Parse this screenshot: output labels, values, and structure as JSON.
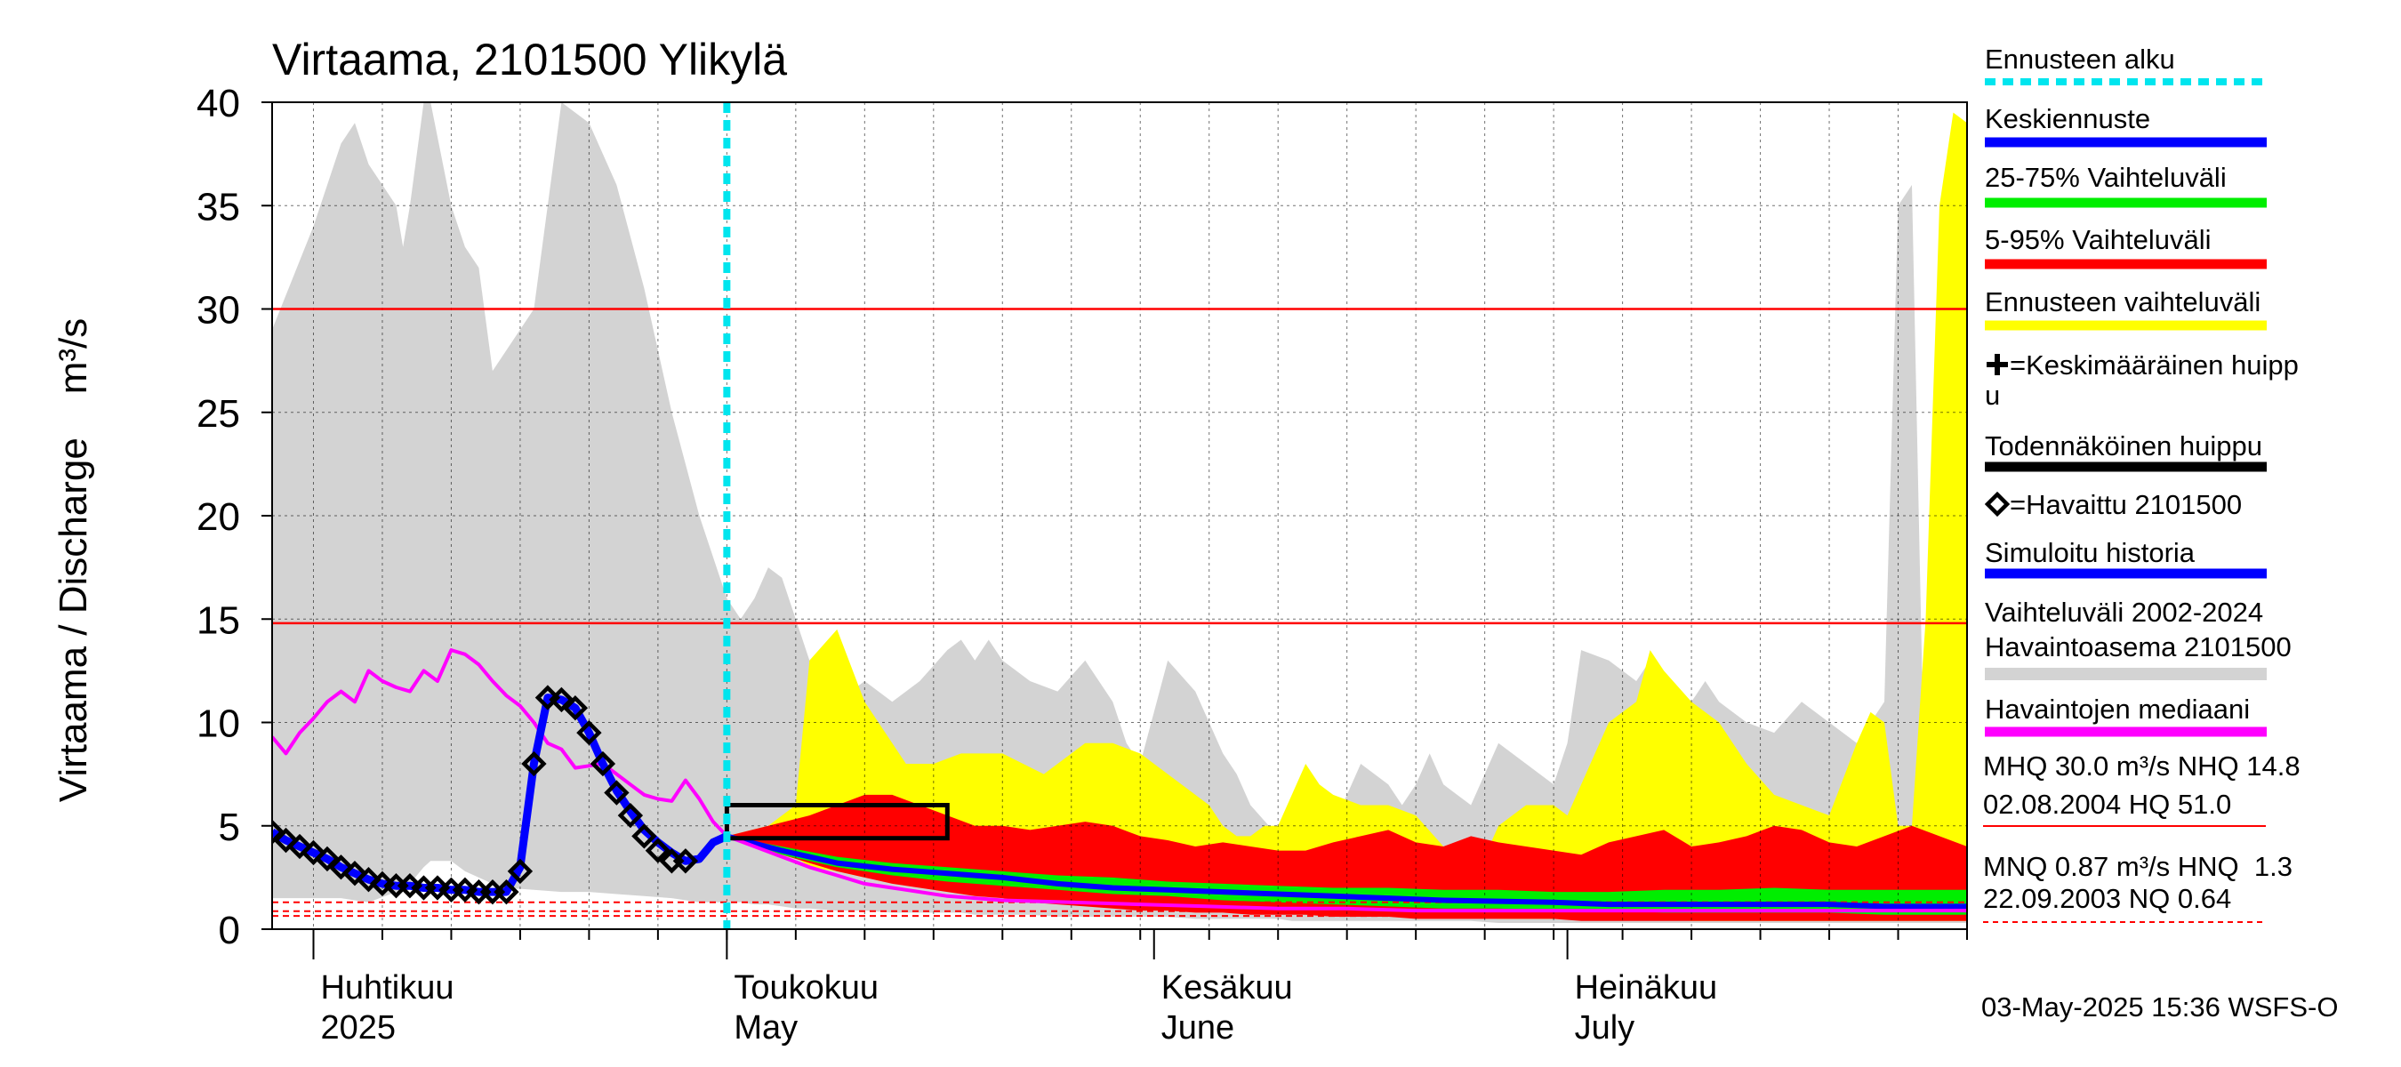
{
  "chart_data": {
    "type": "area",
    "title": "Virtaama, 2101500 Ylikylä",
    "ylabel": "Virtaama / Discharge    m³/s",
    "ylim": [
      0,
      40
    ],
    "yticks": [
      0,
      5,
      10,
      15,
      20,
      25,
      30,
      35,
      40
    ],
    "xlim_days": [
      -3,
      120
    ],
    "month_labels": [
      {
        "fi": "Huhtikuu",
        "en": "2025",
        "day": 0
      },
      {
        "fi": "Toukokuu",
        "en": "May",
        "day": 30
      },
      {
        "fi": "Kesäkuu",
        "en": "June",
        "day": 61
      },
      {
        "fi": "Heinäkuu",
        "en": "July",
        "day": 91
      }
    ],
    "forecast_start_day": 30,
    "reference_lines": [
      {
        "name": "MHQ",
        "value": 30.0,
        "style": "solid",
        "color": "#ff0000"
      },
      {
        "name": "NHQ",
        "value": 14.8,
        "style": "solid",
        "color": "#ff0000"
      },
      {
        "name": "MNQ",
        "value": 0.87,
        "style": "dashed",
        "color": "#ff0000"
      },
      {
        "name": "HNQ",
        "value": 1.3,
        "style": "dashed",
        "color": "#ff0000"
      },
      {
        "name": "NQ",
        "value": 0.64,
        "style": "dashed",
        "color": "#ff0000"
      }
    ],
    "series": [
      {
        "name": "Vaihteluväli 2002-2024 Havaintoasema 2101500",
        "kind": "band",
        "color": "#d3d3d3",
        "x": [
          -3,
          0,
          2,
          3,
          4,
          6,
          6.5,
          7,
          8,
          8.5,
          10,
          11,
          12,
          13,
          14,
          16,
          18,
          20,
          22,
          24,
          26,
          28,
          29,
          30,
          31,
          32,
          33,
          34,
          35,
          36,
          38,
          40,
          42,
          44,
          46,
          47,
          48,
          49,
          50,
          52,
          54,
          56,
          58,
          59,
          60,
          62,
          64,
          65,
          66,
          67,
          68,
          70,
          71,
          72,
          74,
          76,
          78,
          79,
          80,
          81,
          82,
          84,
          86,
          88,
          90,
          91,
          92,
          94,
          96,
          97,
          98,
          100,
          101,
          102,
          104,
          106,
          108,
          110,
          112,
          114,
          115,
          116,
          117,
          118,
          120
        ],
        "upper": [
          29,
          34,
          38,
          39,
          37,
          35,
          33,
          35,
          40,
          40,
          35,
          33,
          32,
          27,
          28,
          30,
          40,
          39,
          36,
          31,
          25,
          20,
          18,
          16,
          15,
          16,
          17.5,
          17,
          15,
          13,
          11,
          12,
          11,
          12,
          13.5,
          14,
          13,
          14,
          13,
          12,
          11.5,
          13,
          11,
          9,
          8,
          13,
          11.5,
          10,
          8.5,
          7.5,
          6,
          4.5,
          4.2,
          4.5,
          5,
          8,
          7,
          6,
          7,
          8.5,
          7,
          6,
          9,
          8,
          7,
          9,
          13.5,
          13,
          12,
          13,
          12,
          11,
          12,
          11,
          10,
          9.5,
          11,
          10,
          9,
          11,
          35,
          36,
          4,
          5,
          4.5
        ],
        "lower": [
          1.5,
          1.5,
          1.5,
          1.4,
          1.3,
          1.8,
          2,
          2.2,
          3,
          3.3,
          3.3,
          2.8,
          2.5,
          2.2,
          2,
          1.9,
          1.8,
          1.8,
          1.7,
          1.6,
          1.5,
          1.3,
          1.3,
          1.3,
          1.3,
          1.2,
          1.2,
          1.1,
          1.0,
          1.0,
          0.9,
          0.9,
          0.8,
          0.8,
          0.8,
          0.8,
          0.7,
          0.7,
          0.7,
          0.7,
          0.6,
          0.6,
          0.6,
          0.6,
          0.6,
          0.6,
          0.5,
          0.5,
          0.5,
          0.5,
          0.5,
          0.5,
          0.4,
          0.4,
          0.4,
          0.4,
          0.4,
          0.4,
          0.4,
          0.4,
          0.4,
          0.4,
          0.3,
          0.3,
          0.3,
          0.3,
          0.3,
          0.3,
          0.3,
          0.3,
          0.3,
          0.3,
          0.3,
          0.3,
          0.3,
          0.3,
          0.3,
          0.3,
          0.3,
          0.3,
          0.3,
          0.3,
          0.3,
          0.3,
          0.3
        ]
      },
      {
        "name": "Ennusteen vaihteluväli",
        "kind": "band",
        "color": "#ffff00",
        "x": [
          30,
          33,
          35,
          36,
          38,
          40,
          43,
          45,
          47,
          50,
          53,
          56,
          58,
          60,
          62,
          65,
          66,
          67,
          68,
          69,
          70,
          72,
          73,
          74,
          76,
          78,
          80,
          82,
          84,
          85,
          86,
          88,
          90,
          91,
          92,
          94,
          96,
          97,
          98,
          100,
          102,
          104,
          106,
          108,
          110,
          112,
          113,
          114,
          115,
          116,
          117,
          118,
          119,
          120
        ],
        "upper": [
          4.5,
          5,
          6,
          13,
          14.5,
          11,
          8,
          8,
          8.5,
          8.5,
          7.5,
          9,
          9,
          8.5,
          7.5,
          6,
          5,
          4.5,
          4.5,
          5,
          5,
          8,
          7,
          6.5,
          6,
          6,
          5.5,
          4,
          3.5,
          3.5,
          5,
          6,
          6,
          5.5,
          7,
          10,
          11,
          13.5,
          12.5,
          11,
          10,
          8,
          6.5,
          6,
          5.5,
          9,
          10.5,
          10,
          5,
          5,
          15,
          35,
          39.5,
          39
        ],
        "lower": [
          4.5,
          4,
          3.5,
          3,
          2.8,
          2.5,
          2.2,
          2.0,
          1.8,
          1.6,
          1.5,
          1.4,
          1.3,
          1.2,
          1.1,
          1.0,
          1.0,
          0.9,
          0.9,
          0.9,
          0.8,
          0.8,
          0.8,
          0.7,
          0.7,
          0.7,
          0.6,
          0.6,
          0.6,
          0.6,
          0.5,
          0.5,
          0.5,
          0.5,
          0.5,
          0.5,
          0.5,
          0.5,
          0.5,
          0.4,
          0.4,
          0.4,
          0.4,
          0.4,
          0.4,
          0.4,
          0.4,
          0.4,
          0.4,
          0.4,
          0.4,
          0.4,
          0.4,
          0.4
        ]
      },
      {
        "name": "5-95% Vaihteluväli",
        "kind": "band",
        "color": "#ff0000",
        "x": [
          30,
          33,
          36,
          38,
          40,
          42,
          44,
          46,
          48,
          50,
          52,
          54,
          56,
          58,
          60,
          62,
          64,
          66,
          68,
          70,
          72,
          74,
          76,
          78,
          80,
          82,
          84,
          86,
          88,
          90,
          92,
          94,
          96,
          98,
          100,
          102,
          104,
          106,
          108,
          110,
          112,
          114,
          116,
          118,
          120
        ],
        "upper": [
          4.5,
          5,
          5.5,
          6,
          6.5,
          6.5,
          6,
          5.5,
          5,
          5,
          4.8,
          5,
          5.2,
          5,
          4.5,
          4.3,
          4.0,
          4.2,
          4.0,
          3.8,
          3.8,
          4.2,
          4.5,
          4.8,
          4.2,
          4.0,
          4.5,
          4.2,
          4.0,
          3.8,
          3.6,
          4.2,
          4.5,
          4.8,
          4.0,
          4.2,
          4.5,
          5.0,
          4.8,
          4.2,
          4.0,
          4.5,
          5.0,
          4.5,
          4.0
        ],
        "lower": [
          4.5,
          3.8,
          3.2,
          2.8,
          2.5,
          2.2,
          2.0,
          1.8,
          1.6,
          1.5,
          1.3,
          1.2,
          1.1,
          1.0,
          0.9,
          0.9,
          0.8,
          0.8,
          0.7,
          0.7,
          0.7,
          0.6,
          0.6,
          0.6,
          0.5,
          0.5,
          0.5,
          0.5,
          0.5,
          0.5,
          0.4,
          0.4,
          0.4,
          0.4,
          0.4,
          0.4,
          0.4,
          0.4,
          0.4,
          0.4,
          0.4,
          0.4,
          0.4,
          0.4,
          0.4
        ]
      },
      {
        "name": "25-75% Vaihteluväli",
        "kind": "band",
        "color": "#00ee00",
        "x": [
          30,
          34,
          38,
          42,
          46,
          50,
          54,
          58,
          62,
          66,
          70,
          74,
          78,
          82,
          86,
          90,
          94,
          98,
          102,
          106,
          110,
          114,
          118,
          120
        ],
        "upper": [
          4.5,
          4.0,
          3.5,
          3.2,
          3.0,
          2.8,
          2.6,
          2.5,
          2.3,
          2.2,
          2.1,
          2.0,
          2.0,
          1.9,
          1.9,
          1.8,
          1.8,
          1.9,
          1.9,
          2.0,
          1.9,
          1.9,
          1.9,
          1.9
        ],
        "lower": [
          4.5,
          3.6,
          3.0,
          2.6,
          2.3,
          2.1,
          1.9,
          1.7,
          1.6,
          1.4,
          1.3,
          1.2,
          1.1,
          1.0,
          1.0,
          0.9,
          0.9,
          0.8,
          0.8,
          0.8,
          0.8,
          0.7,
          0.7,
          0.7
        ]
      },
      {
        "name": "Keskiennuste",
        "kind": "line",
        "color": "#0000ff",
        "x": [
          30,
          34,
          38,
          42,
          46,
          50,
          54,
          58,
          62,
          66,
          70,
          74,
          78,
          82,
          86,
          90,
          94,
          98,
          102,
          106,
          110,
          114,
          118,
          120
        ],
        "y": [
          4.5,
          3.8,
          3.2,
          2.9,
          2.7,
          2.5,
          2.2,
          2.0,
          1.9,
          1.8,
          1.7,
          1.6,
          1.5,
          1.4,
          1.35,
          1.3,
          1.2,
          1.2,
          1.2,
          1.2,
          1.2,
          1.1,
          1.1,
          1.1
        ]
      },
      {
        "name": "Havaintojen mediaani",
        "kind": "line",
        "color": "#ff00ff",
        "x": [
          -3,
          -2,
          -1,
          0,
          1,
          2,
          3,
          4,
          5,
          6,
          7,
          8,
          9,
          10,
          11,
          12,
          13,
          14,
          15,
          16,
          17,
          18,
          19,
          20,
          21,
          22,
          23,
          24,
          25,
          26,
          27,
          28,
          29,
          30,
          32,
          34,
          36,
          38,
          40,
          42,
          44,
          46,
          48,
          50,
          55,
          60,
          65,
          70,
          75,
          80,
          85,
          90,
          95,
          100,
          105,
          110,
          115,
          120
        ],
        "y": [
          9.3,
          8.5,
          9.5,
          10.2,
          11,
          11.5,
          11,
          12.5,
          12,
          11.7,
          11.5,
          12.5,
          12,
          13.5,
          13.3,
          12.8,
          12,
          11.3,
          10.8,
          10,
          9,
          8.7,
          7.8,
          7.9,
          8.0,
          7.5,
          7.0,
          6.5,
          6.3,
          6.2,
          7.2,
          6.3,
          5.2,
          4.5,
          4.0,
          3.5,
          3.0,
          2.6,
          2.2,
          2.0,
          1.8,
          1.6,
          1.5,
          1.4,
          1.3,
          1.2,
          1.1,
          1.0,
          1.0,
          0.9,
          0.9,
          0.9,
          0.9,
          0.9,
          0.9,
          0.9,
          0.9,
          0.9
        ]
      },
      {
        "name": "Simuloitu historia",
        "kind": "line",
        "color": "#0000ff",
        "x": [
          -3,
          -2,
          -1,
          0,
          1,
          2,
          3,
          4,
          5,
          6,
          7,
          8,
          9,
          10,
          11,
          12,
          13,
          14,
          15,
          16,
          17,
          18,
          19,
          20,
          21,
          22,
          23,
          24,
          25,
          26,
          27,
          28,
          29,
          30
        ],
        "y": [
          4.7,
          4.3,
          4.0,
          3.7,
          3.4,
          3.0,
          2.7,
          2.4,
          2.2,
          2.1,
          2.1,
          2.0,
          2.0,
          1.9,
          1.9,
          1.8,
          1.8,
          1.8,
          3.0,
          8.0,
          11.2,
          11.1,
          10.7,
          9.5,
          8.0,
          6.7,
          5.7,
          4.8,
          4.2,
          3.7,
          3.3,
          3.4,
          4.2,
          4.5
        ]
      },
      {
        "name": "=Havaittu 2101500",
        "kind": "markers",
        "color": "#000000",
        "x": [
          -3,
          -2,
          -1,
          0,
          1,
          2,
          3,
          4,
          5,
          6,
          7,
          8,
          9,
          10,
          11,
          12,
          13,
          14,
          15,
          16,
          17,
          18,
          19,
          20,
          21,
          22,
          23,
          24,
          25,
          26,
          27
        ],
        "y": [
          4.7,
          4.3,
          4.0,
          3.7,
          3.4,
          3.0,
          2.7,
          2.4,
          2.2,
          2.1,
          2.1,
          2.0,
          2.0,
          1.9,
          1.9,
          1.8,
          1.8,
          1.8,
          2.8,
          8.0,
          11.2,
          11.1,
          10.7,
          9.5,
          8.0,
          6.6,
          5.5,
          4.5,
          3.8,
          3.3,
          3.3
        ]
      }
    ],
    "probable_peak_box": {
      "x": [
        30,
        46
      ],
      "y": [
        4.4,
        6.0
      ]
    },
    "legend": [
      {
        "label": "Ennusteen alku",
        "kind": "dotted",
        "color": "#00e5ee"
      },
      {
        "label": "Keskiennuste",
        "kind": "line",
        "color": "#0000ff"
      },
      {
        "label": "25-75% Vaihteluväli",
        "kind": "line",
        "color": "#00ee00"
      },
      {
        "label": "5-95% Vaihteluväli",
        "kind": "line",
        "color": "#ff0000"
      },
      {
        "label": "Ennusteen vaihteluväli",
        "kind": "line",
        "color": "#ffff00"
      },
      {
        "label": "=Keskimääräinen huipp",
        "label2": "u",
        "kind": "plus",
        "color": "#000000"
      },
      {
        "label": "Todennäköinen huippu",
        "kind": "line",
        "color": "#000000"
      },
      {
        "label": "=Havaittu 2101500",
        "kind": "diamond",
        "color": "#000000"
      },
      {
        "label": "Simuloitu historia",
        "kind": "line",
        "color": "#0000ff"
      },
      {
        "label": "Vaihteluväli 2002-2024",
        "label2": " Havaintoasema 2101500",
        "kind": "line",
        "color": "#d3d3d3"
      },
      {
        "label": "Havaintojen mediaani",
        "kind": "line",
        "color": "#ff00ff"
      }
    ],
    "stats": {
      "line1": "MHQ 30.0 m³/s NHQ 14.8",
      "line2": "02.08.2004 HQ 51.0",
      "line3": "MNQ 0.87 m³/s HNQ  1.3",
      "line4": "22.09.2003 NQ 0.64"
    },
    "timestamp": "03-May-2025 15:36 WSFS-O"
  }
}
